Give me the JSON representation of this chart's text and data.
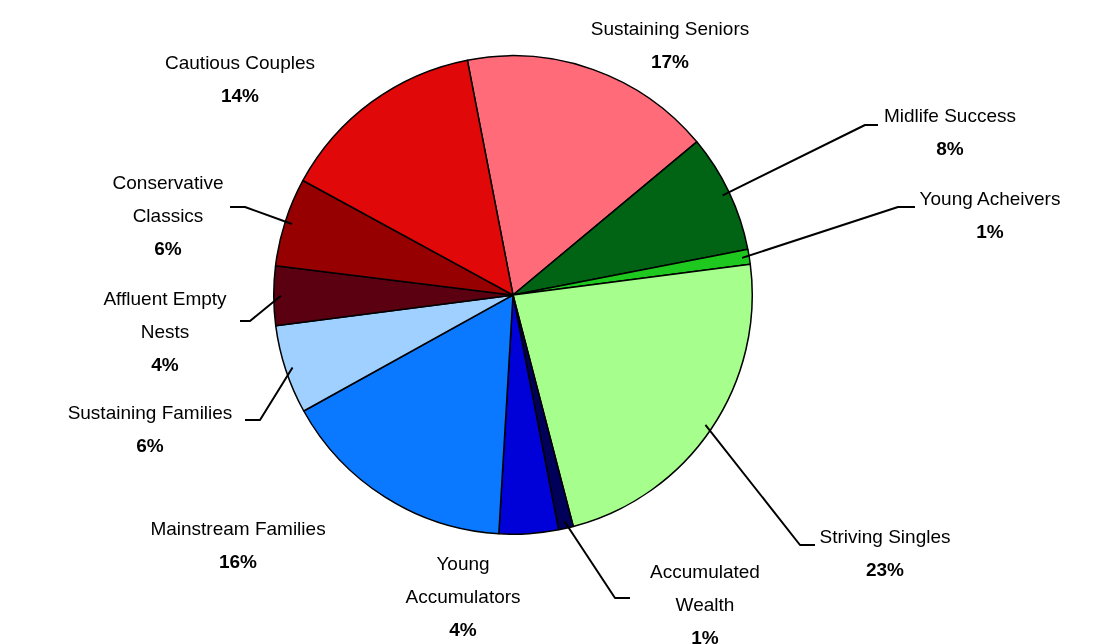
{
  "chart_data": {
    "type": "pie",
    "categories": [
      "Sustaining Seniors",
      "Midlife Success",
      "Young Acheivers",
      "Striving Singles",
      "Accumulated Wealth",
      "Young Accumulators",
      "Mainstream Families",
      "Sustaining Families",
      "Affluent Empty Nests",
      "Conservative Classics",
      "Cautious Couples"
    ],
    "values": [
      17,
      8,
      1,
      23,
      1,
      4,
      16,
      6,
      4,
      6,
      14
    ],
    "colors": [
      "#ff6b78",
      "#006414",
      "#1ec81e",
      "#a6ff8c",
      "#00005a",
      "#0000d8",
      "#0a78ff",
      "#a0d0ff",
      "#5a0010",
      "#960000",
      "#e00808"
    ],
    "value_labels": [
      "17%",
      "8%",
      "1%",
      "23%",
      "1%",
      "4%",
      "16%",
      "6%",
      "4%",
      "6%",
      "14%"
    ],
    "legend": false
  }
}
